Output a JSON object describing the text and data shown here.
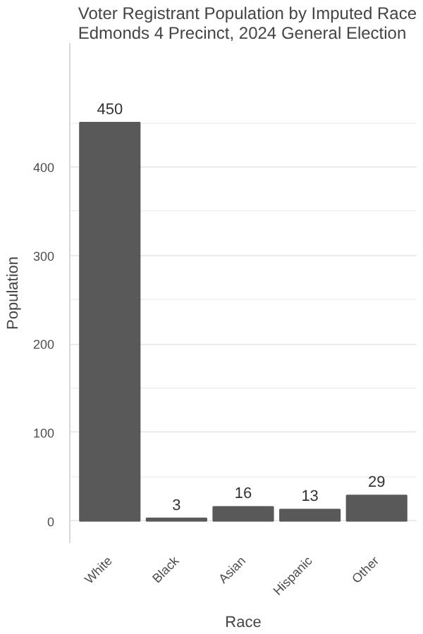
{
  "chart_data": {
    "type": "bar",
    "title": "Voter Registrant Population by Imputed Race\nEdmonds  4 Precinct,  2024 General Election",
    "xlabel": "Race",
    "ylabel": "Population",
    "categories": [
      "White",
      "Black",
      "Asian",
      "Hispanic",
      "Other"
    ],
    "values": [
      450,
      3,
      16,
      13,
      29
    ],
    "color": "#595959",
    "ylim": [
      -25,
      540
    ],
    "yticks": [
      0,
      100,
      200,
      300,
      400
    ],
    "grid": "y",
    "data_labels": true
  }
}
